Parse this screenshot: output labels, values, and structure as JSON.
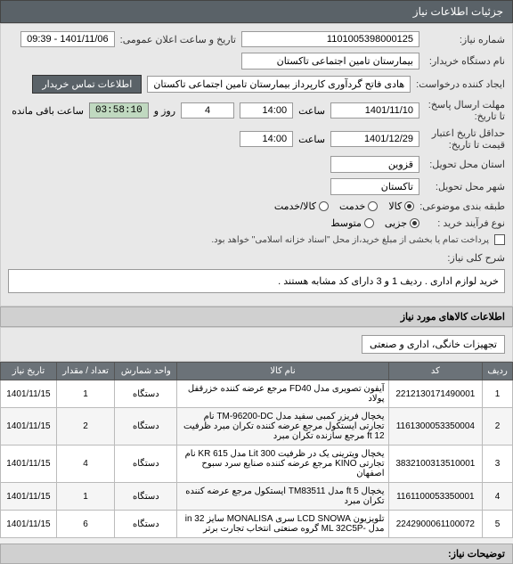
{
  "header": {
    "title": "جزئیات اطلاعات نیاز"
  },
  "form": {
    "need_no_label": "شماره نیاز:",
    "need_no": "1101005398000125",
    "announce_label": "تاریخ و ساعت اعلان عمومی:",
    "announce_value": "1401/11/06 - 09:39",
    "buyer_label": "نام دستگاه خریدار:",
    "buyer_value": "بیمارستان تامین اجتماعی تاکستان",
    "requester_label": "ایجاد کننده درخواست:",
    "requester_value": "هادی فاتح گردآوری کارپرداز بیمارستان تامین اجتماعی تاکستان",
    "contact_btn": "اطلاعات تماس خریدار",
    "deadline_label": "مهلت ارسال پاسخ:",
    "deadline_ta": "تا تاریخ:",
    "deadline_date": "1401/11/10",
    "time_label": "ساعت",
    "deadline_time": "14:00",
    "days_remain": "4",
    "roz_va": "روز و",
    "countdown": "03:58:10",
    "remain_label": "ساعت باقی مانده",
    "validity_label": "حداقل تاریخ اعتبار",
    "validity_sub": "قیمت تا تاریخ:",
    "validity_date": "1401/12/29",
    "validity_time": "14:00",
    "province_label": "استان محل تحویل:",
    "province_value": "قزوین",
    "city_label": "شهر محل تحویل:",
    "city_value": "تاکستان",
    "type_label": "طبقه بندی موضوعی:",
    "type_kala": "کالا",
    "type_khadamat": "خدمت",
    "type_kalakhadamat": "کالا/خدمت",
    "process_label": "نوع فرآیند خرید :",
    "process_jozi": "جزیی",
    "process_motevaset": "متوسط",
    "payment_note": "پرداخت تمام یا بخشی از مبلغ خرید،از محل \"اسناد خزانه اسلامی\" خواهد بود.",
    "desc_label": "شرح کلی نیاز:",
    "desc_value": "خرید لوازم اداری . ردیف 1 و 3 دارای کد مشابه هستند .",
    "items_header": "اطلاعات کالاهای مورد نیاز",
    "category_value": "تجهیزات خانگی، اداری و صنعتی",
    "notes_label": "توضیحات نیاز:"
  },
  "table": {
    "headers": {
      "row": "ردیف",
      "code": "کد",
      "name": "نام کالا",
      "unit": "واحد شمارش",
      "qty": "تعداد / مقدار",
      "date": "تاریخ نیاز"
    },
    "rows": [
      {
        "n": "1",
        "code": "2212130171490001",
        "name": "آیفون تصویری مدل FD40 مرجع عرضه کننده خزرقفل پولاد",
        "unit": "دستگاه",
        "qty": "1",
        "date": "1401/11/15"
      },
      {
        "n": "2",
        "code": "1161300053350004",
        "name": "یخچال فریزر کمبی سفید مدل TM-96200-DC نام تجارتی ایستکول مرجع عرضه کننده تکران مبرد ظرفیت ft 12 مرجع سازنده تکران مبرد",
        "unit": "دستگاه",
        "qty": "2",
        "date": "1401/11/15"
      },
      {
        "n": "3",
        "code": "3832100313510001",
        "name": "یخچال ویترینی یک در ظرفیت Lit 300 مدل KR 615 نام تجارتی KINO مرجع عرضه کننده صنایع سرد سبوح اصفهان",
        "unit": "دستگاه",
        "qty": "4",
        "date": "1401/11/15"
      },
      {
        "n": "4",
        "code": "1161100053350001",
        "name": "یخچال ft 5 مدل TM83511 ایستکول مرجع عرضه کننده تکران مبرد",
        "unit": "دستگاه",
        "qty": "1",
        "date": "1401/11/15"
      },
      {
        "n": "5",
        "code": "2242900061100072",
        "name": "تلویزیون LCD SNOWA سری MONALISA سایز in 32 مدل -ML 32C5P گروه صنعتی انتخاب تجارت برتر",
        "unit": "دستگاه",
        "qty": "6",
        "date": "1401/11/15"
      }
    ]
  }
}
